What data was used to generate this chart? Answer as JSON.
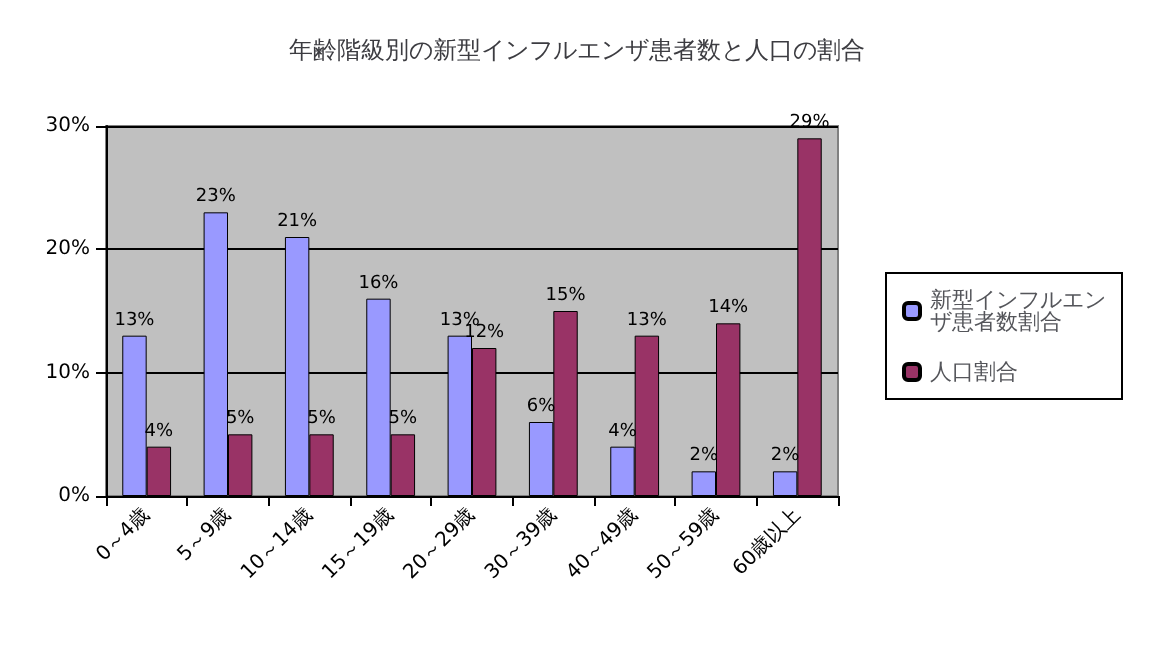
{
  "chart_data": {
    "type": "bar",
    "title": "年齢階級別の新型インフルエンザ患者数と人口の割合",
    "categories": [
      "0～4歳",
      "5～9歳",
      "10～14歳",
      "15～19歳",
      "20～29歳",
      "30～39歳",
      "40～49歳",
      "50～59歳",
      "60歳以上"
    ],
    "series": [
      {
        "name": "新型インフルエンザ患者数割合",
        "color": "#9999ff",
        "values": [
          13,
          23,
          21,
          16,
          13,
          6,
          4,
          2,
          2
        ],
        "value_labels": [
          "13%",
          "23%",
          "21%",
          "16%",
          "13%",
          "6%",
          "4%",
          "2%",
          "2%"
        ]
      },
      {
        "name": "人口割合",
        "color": "#993366",
        "values": [
          4,
          5,
          5,
          5,
          12,
          15,
          13,
          14,
          29
        ],
        "value_labels": [
          "4%",
          "5%",
          "5%",
          "5%",
          "12%",
          "15%",
          "13%",
          "14%",
          "29%"
        ]
      }
    ],
    "ylim": [
      0,
      30
    ],
    "yticks": [
      {
        "value": 0,
        "label": "0%"
      },
      {
        "value": 10,
        "label": "10%"
      },
      {
        "value": 20,
        "label": "20%"
      },
      {
        "value": 30,
        "label": "30%"
      }
    ],
    "grid": "y",
    "legend": "right"
  }
}
